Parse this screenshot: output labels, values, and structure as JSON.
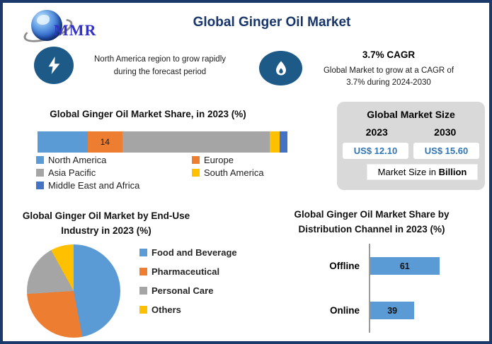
{
  "header": {
    "logo_text": "MMR",
    "title": "Global Ginger Oil Market"
  },
  "callouts": [
    {
      "icon": "lightning-icon",
      "text": "North America region to grow rapidly during the forecast period"
    },
    {
      "icon": "flame-icon",
      "headline": "3.7% CAGR",
      "text": "Global Market to grow at a CAGR of 3.7% during 2024-2030"
    }
  ],
  "market_size": {
    "title": "Global Market Size",
    "years": [
      "2023",
      "2030"
    ],
    "values": [
      "US$ 12.10",
      "US$ 15.60"
    ],
    "note_prefix": "Market Size in ",
    "note_bold": "Billion"
  },
  "colors": {
    "navy": "#17356b",
    "icon_blue": "#1e5a88",
    "value_blue": "#2e75b6",
    "card_gray": "#d9d9d9"
  },
  "chart_data": [
    {
      "type": "bar",
      "subtype": "stacked-horizontal-100pct",
      "title": "Global Ginger Oil Market Share, in 2023 (%)",
      "unit": "%",
      "series": [
        {
          "name": "North America",
          "value": 20,
          "color": "#5b9bd5"
        },
        {
          "name": "Europe",
          "value": 14,
          "color": "#ed7d31",
          "data_label": "14"
        },
        {
          "name": "Asia Pacific",
          "value": 59,
          "color": "#a5a5a5"
        },
        {
          "name": "South America",
          "value": 4,
          "color": "#ffc000"
        },
        {
          "name": "Middle East and Africa",
          "value": 3,
          "color": "#4472c4"
        }
      ],
      "legend_position": "bottom"
    },
    {
      "type": "pie",
      "title": "Global Ginger Oil Market by End-Use Industry in 2023 (%)",
      "start_angle_deg": 0,
      "slices": [
        {
          "name": "Food and Beverage",
          "value": 47,
          "color": "#5b9bd5"
        },
        {
          "name": "Pharmaceutical",
          "value": 27,
          "color": "#ed7d31"
        },
        {
          "name": "Personal Care",
          "value": 18,
          "color": "#a5a5a5"
        },
        {
          "name": "Others",
          "value": 8,
          "color": "#ffc000"
        }
      ],
      "legend_position": "right"
    },
    {
      "type": "bar",
      "subtype": "horizontal",
      "title": "Global Ginger Oil Market Share by Distribution Channel in 2023 (%)",
      "categories": [
        "Offline",
        "Online"
      ],
      "values": [
        61,
        39
      ],
      "bar_color": "#5b9bd5",
      "xlim": [
        0,
        100
      ],
      "data_labels": true
    }
  ]
}
